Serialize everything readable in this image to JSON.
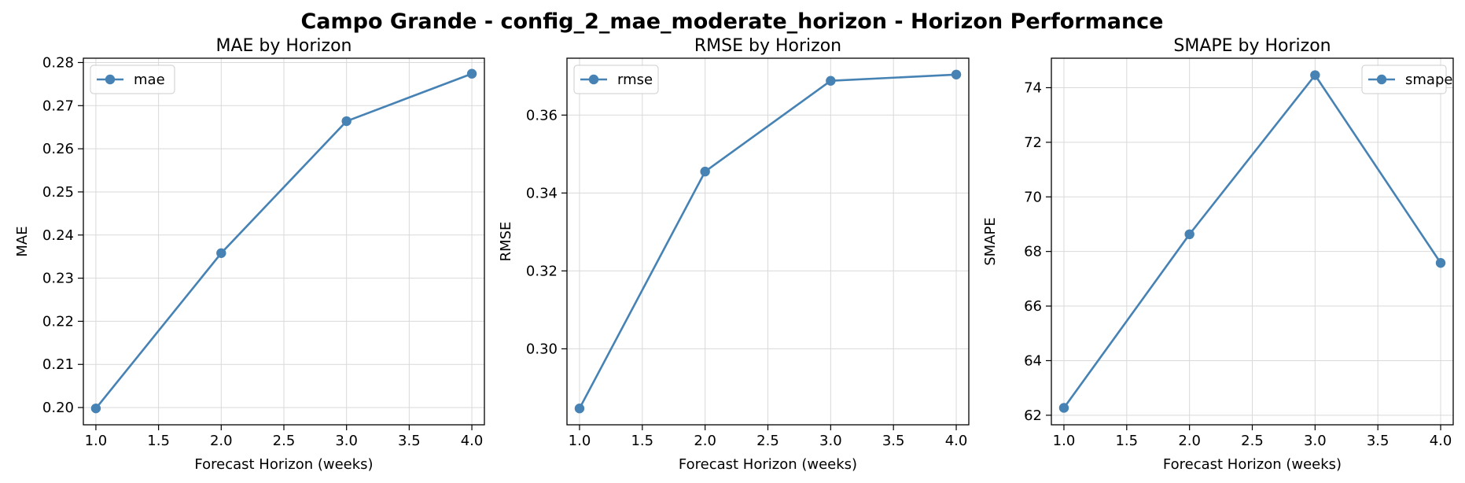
{
  "figure": {
    "suptitle": "Campo Grande - config_2_mae_moderate_horizon - Horizon Performance"
  },
  "colors": {
    "line": "#4682b4",
    "grid": "#d9d9d9",
    "axis": "#000000"
  },
  "chart_data": [
    {
      "type": "line",
      "title": "MAE by Horizon",
      "xlabel": "Forecast Horizon (weeks)",
      "ylabel": "MAE",
      "x": [
        1.0,
        2.0,
        3.0,
        4.0
      ],
      "series": [
        {
          "name": "mae",
          "values": [
            0.1998,
            0.2358,
            0.2664,
            0.2774
          ]
        }
      ],
      "xlim": [
        0.9,
        4.1
      ],
      "ylim": [
        0.196,
        0.281
      ],
      "xticks": [
        "1.0",
        "1.5",
        "2.0",
        "2.5",
        "3.0",
        "3.5",
        "4.0"
      ],
      "yticks": [
        "0.20",
        "0.21",
        "0.22",
        "0.23",
        "0.24",
        "0.25",
        "0.26",
        "0.27",
        "0.28"
      ],
      "grid": true,
      "legend_position": "upper left"
    },
    {
      "type": "line",
      "title": "RMSE by Horizon",
      "xlabel": "Forecast Horizon (weeks)",
      "ylabel": "RMSE",
      "x": [
        1.0,
        2.0,
        3.0,
        4.0
      ],
      "series": [
        {
          "name": "rmse",
          "values": [
            0.2847,
            0.3455,
            0.3688,
            0.3704
          ]
        }
      ],
      "xlim": [
        0.9,
        4.1
      ],
      "ylim": [
        0.2805,
        0.3746
      ],
      "xticks": [
        "1.0",
        "1.5",
        "2.0",
        "2.5",
        "3.0",
        "3.5",
        "4.0"
      ],
      "yticks": [
        "0.30",
        "0.32",
        "0.34",
        "0.36"
      ],
      "grid": true,
      "legend_position": "upper left"
    },
    {
      "type": "line",
      "title": "SMAPE by Horizon",
      "xlabel": "Forecast Horizon (weeks)",
      "ylabel": "SMAPE",
      "x": [
        1.0,
        2.0,
        3.0,
        4.0
      ],
      "series": [
        {
          "name": "smape",
          "values": [
            62.27,
            68.63,
            74.46,
            67.58
          ]
        }
      ],
      "xlim": [
        0.9,
        4.1
      ],
      "ylim": [
        61.65,
        75.08
      ],
      "xticks": [
        "1.0",
        "1.5",
        "2.0",
        "2.5",
        "3.0",
        "3.5",
        "4.0"
      ],
      "yticks": [
        "62",
        "64",
        "66",
        "68",
        "70",
        "72",
        "74"
      ],
      "grid": true,
      "legend_position": "upper right"
    }
  ]
}
